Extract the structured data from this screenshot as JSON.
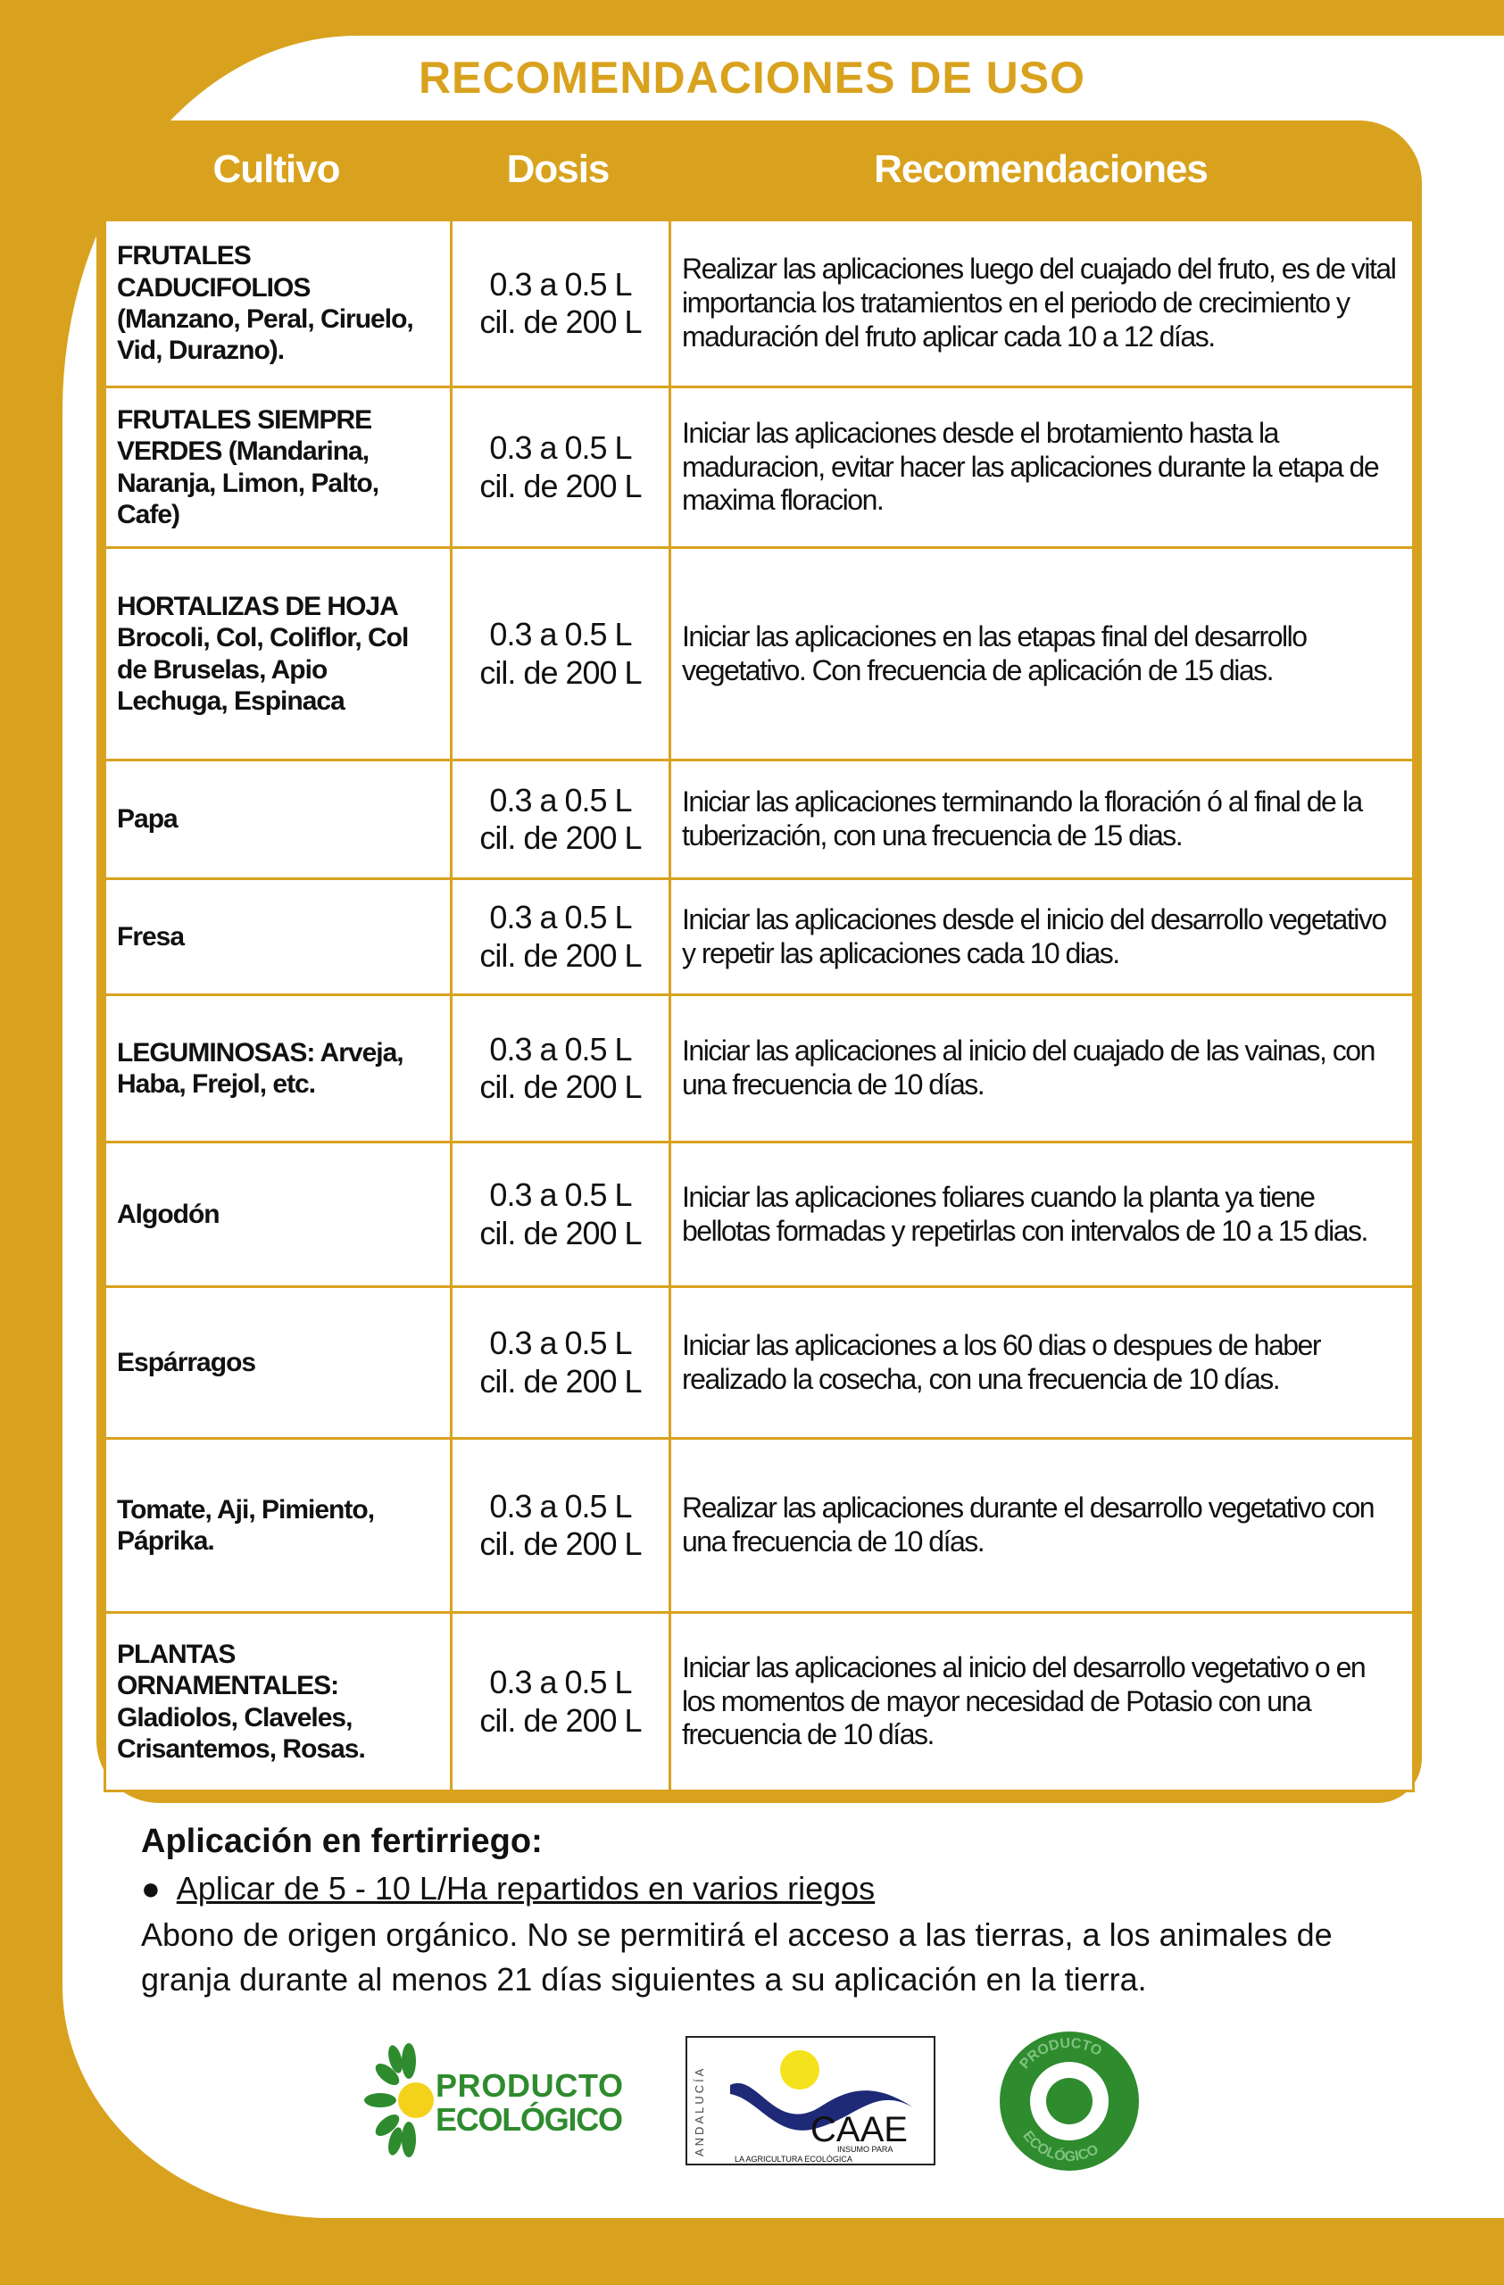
{
  "title": "RECOMENDACIONES DE USO",
  "table": {
    "headers": [
      "Cultivo",
      "Dosis",
      "Recomendaciones"
    ],
    "rows": [
      {
        "cultivo": "FRUTALES CADUCIFOLIOS\n(Manzano, Peral, Ciruelo,\n Vid, Durazno).",
        "dosis": "0.3 a 0.5 L\ncil. de 200 L",
        "rec": "Realizar las aplicaciones luego del cuajado del fruto, es de vital\nimportancia los tratamientos en el periodo de crecimiento y\nmaduración del fruto aplicar cada 10 a 12 días."
      },
      {
        "cultivo": "FRUTALES SIEMPRE\nVERDES (Mandarina,\nNaranja, Limon, Palto, Cafe)",
        "dosis": "0.3 a 0.5 L\ncil. de 200 L",
        "rec": "Iniciar  las aplicaciones desde el brotamiento hasta la\nmaduracion, evitar hacer las aplicaciones durante la etapa\nde maxima floracion."
      },
      {
        "cultivo": "HORTALIZAS DE HOJA\nBrocoli, Col, Coliflor,\nCol de Bruselas, Apio\nLechuga, Espinaca",
        "dosis": "0.3 a 0.5 L\ncil. de 200 L",
        "rec": "Iniciar  las aplicaciones en las etapas final del desarrollo\nvegetativo. Con frecuencia de aplicación de 15 dias."
      },
      {
        "cultivo": "Papa",
        "dosis": "0.3 a 0.5 L\ncil. de 200 L",
        "rec": "Iniciar  las aplicaciones terminando la floración ó al final de\nla tuberización, con una frecuencia de 15 dias."
      },
      {
        "cultivo": "Fresa",
        "dosis": "0.3 a 0.5 L\ncil. de 200 L",
        "rec": "Iniciar  las aplicaciones desde el inicio del desarrollo\nvegetativo y repetir las aplicaciones cada 10 dias."
      },
      {
        "cultivo": "LEGUMINOSAS: Arveja,\nHaba, Frejol, etc.",
        "dosis": "0.3 a 0.5 L\ncil. de 200 L",
        "rec": "Iniciar  las aplicaciones al inicio del cuajado de las vainas,\n con una frecuencia de 10 días."
      },
      {
        "cultivo": "Algodón",
        "dosis": "0.3 a 0.5 L\ncil. de 200 L",
        "rec": "Iniciar  las aplicaciones foliares cuando la planta ya tiene\n bellotas formadas y repetirlas con intervalos de 10 a 15 dias."
      },
      {
        "cultivo": "Espárragos",
        "dosis": "0.3 a 0.5 L\ncil. de 200 L",
        "rec": "Iniciar  las aplicaciones  a los 60 dias o despues de haber\nrealizado la cosecha, con una frecuencia de 10  días."
      },
      {
        "cultivo": "Tomate,  Aji,\nPimiento, Páprika.",
        "dosis": "0.3 a 0.5 L\ncil. de 200 L",
        "rec": "Realizar las aplicaciones durante el desarrollo vegetativo\ncon una frecuencia de 10 días."
      },
      {
        "cultivo": "PLANTAS ORNAMENTALES:\nGladiolos, Claveles,\nCrisantemos, Rosas.",
        "dosis": "0.3 a 0.5 L\ncil. de 200 L",
        "rec": "Iniciar  las aplicaciones al inicio del desarrollo vegetativo o\nen los momentos de mayor necesidad de Potasio\ncon una frecuencia de 10 días."
      }
    ]
  },
  "fertirriego": {
    "heading": "Aplicación en fertirriego:",
    "bullet": "Aplicar de 5 - 10 L/Ha repartidos en varios riegos",
    "note": "Abono de origen orgánico. No se permitirá el acceso a las tierras, a los animales\nde granja durante al menos 21 días siguientes a su aplicación en la tierra."
  },
  "logos": {
    "producto_ecologico": "PRODUCTO ECOLÓGICO",
    "caae": {
      "side": "ANDALUCÍA",
      "name": "CAAE",
      "line1": "INSUMO PARA",
      "line2": "LA AGRICULTURA ECOLÓGICA"
    },
    "seal": "PRODUCTO ECOLÓGICO"
  },
  "colors": {
    "gold": "#d9a21e",
    "green": "#2e8b2e",
    "navy": "#1e2a78",
    "yellow": "#f4e21c"
  }
}
